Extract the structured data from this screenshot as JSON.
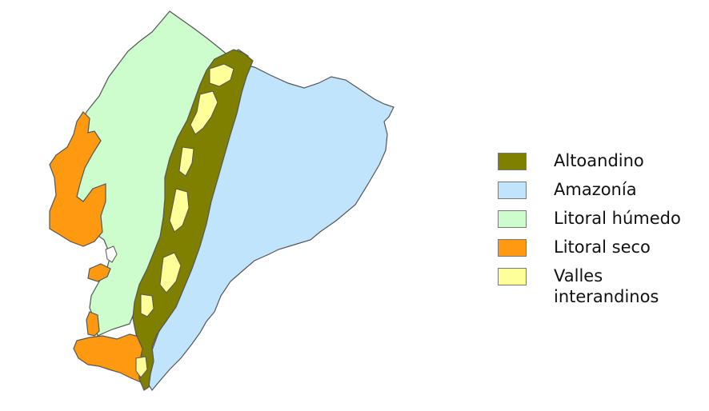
{
  "colors": {
    "background": "#ffffff",
    "outline": "#555555"
  },
  "legend": {
    "items": [
      {
        "id": "altoandino",
        "label": "Altoandino",
        "color": "#7f7f00"
      },
      {
        "id": "amazonia",
        "label": "Amazonía",
        "color": "#bfe4fb"
      },
      {
        "id": "litoral-humedo",
        "label": "Litoral húmedo",
        "color": "#cdfccd"
      },
      {
        "id": "litoral-seco",
        "label": "Litoral seco",
        "color": "#ff9a10"
      },
      {
        "id": "valles",
        "label": "Valles\ninterandinos",
        "color": "#ffff99"
      }
    ]
  }
}
